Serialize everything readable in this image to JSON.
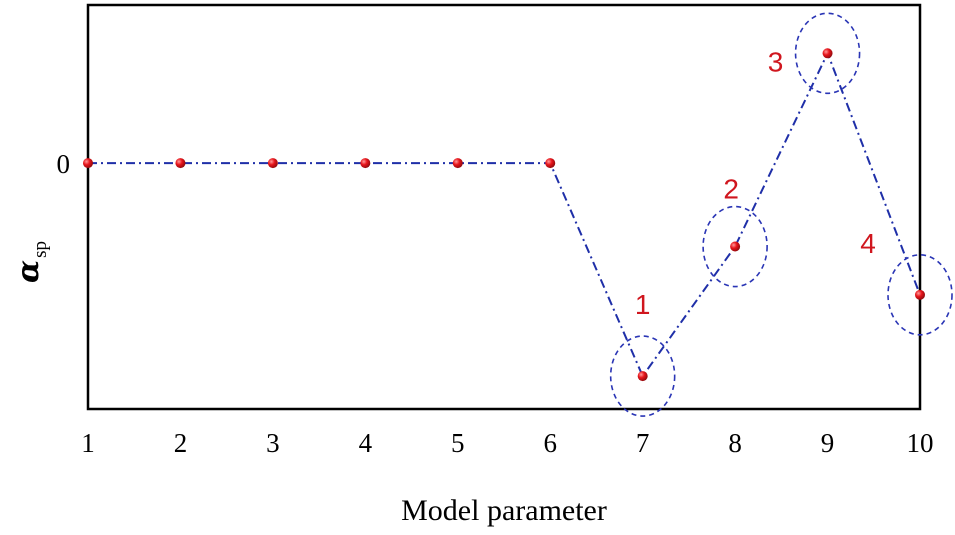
{
  "chart_data": {
    "type": "line",
    "title": "",
    "xlabel": "Model parameter",
    "ylabel": {
      "main": "α",
      "subscript": "sp"
    },
    "x": [
      1,
      2,
      3,
      4,
      5,
      6,
      7,
      8,
      9,
      10
    ],
    "x_tick_labels": [
      "1",
      "2",
      "3",
      "4",
      "5",
      "6",
      "7",
      "8",
      "9",
      "10"
    ],
    "y_tick_labels": [
      "0"
    ],
    "xlim": [
      1,
      10
    ],
    "ylim": [
      -1.12,
      0.72
    ],
    "grid": false,
    "series": [
      {
        "values": [
          0,
          0,
          0,
          0,
          0,
          0,
          -0.97,
          -0.38,
          0.5,
          -0.6
        ],
        "line_color": "#1f2fa8",
        "line_style": "dash-dot",
        "marker_color": "#e8151b"
      }
    ],
    "annotations": [
      {
        "label": "1",
        "x": 7,
        "y": -0.97
      },
      {
        "label": "2",
        "x": 8,
        "y": -0.38
      },
      {
        "label": "3",
        "x": 9,
        "y": 0.5
      },
      {
        "label": "4",
        "x": 10,
        "y": -0.6
      }
    ],
    "annotation_color": "#d0161e",
    "circle_color": "#2a35b5"
  }
}
